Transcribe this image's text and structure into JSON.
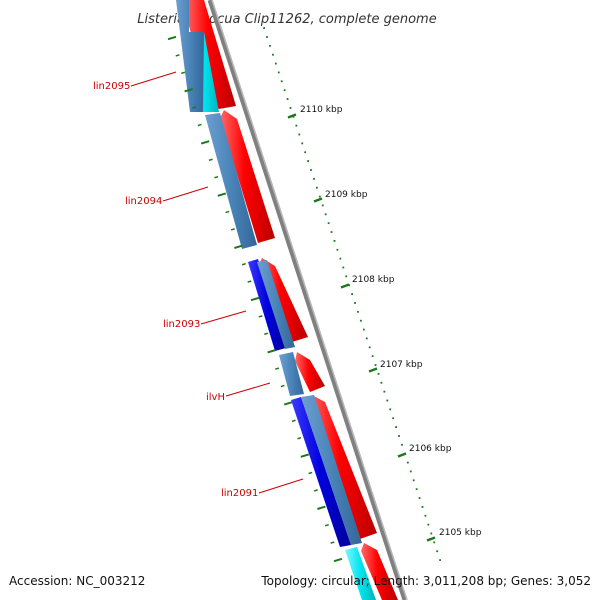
{
  "title": "Listeria innocua Clip11262, complete genome",
  "footer": {
    "accession": "Accession: NC_003212",
    "summary": "Topology: circular; Length: 3,011,208 bp; Genes: 3,052"
  },
  "scale_labels": [
    "2110 kbp",
    "2109 kbp",
    "2108 kbp",
    "2107 kbp",
    "2106 kbp",
    "2105 kbp"
  ],
  "gene_labels": [
    "lin2095",
    "lin2094",
    "lin2093",
    "ilvH",
    "lin2091"
  ],
  "colors": {
    "forward_cds": "#ff0000",
    "reverse_cds": "#0000dd",
    "steelblue_track": "#4a84b8",
    "cyan_track": "#00e5ee",
    "backbone": "#808080",
    "ticks": "#1a7a1a",
    "label_line": "#cc0000"
  }
}
